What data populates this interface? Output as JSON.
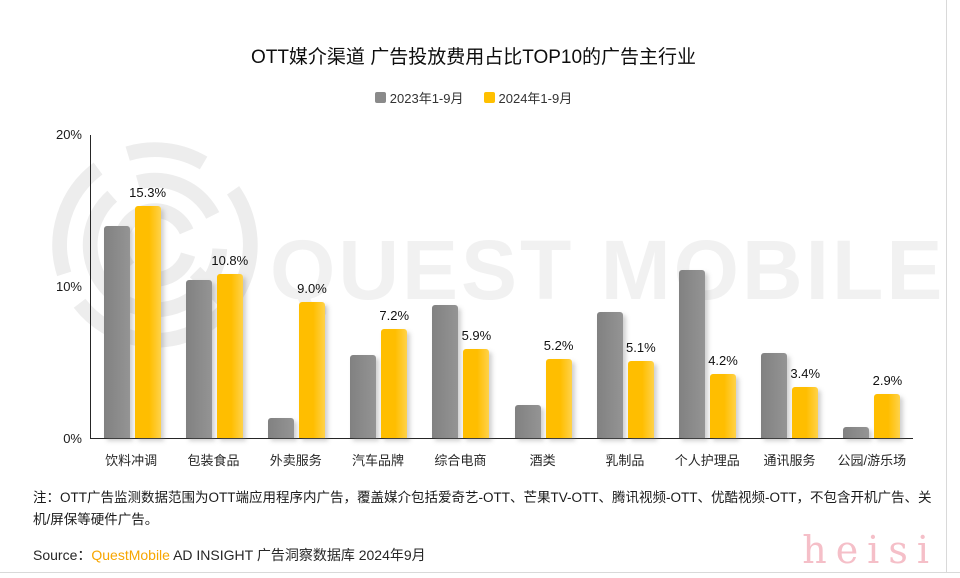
{
  "title": "OTT媒介渠道 广告投放费用占比TOP10的广告主行业",
  "legend": [
    {
      "label": "2023年1-9月",
      "color": "#8a8a8a"
    },
    {
      "label": "2024年1-9月",
      "color": "#ffc000"
    }
  ],
  "chart_data": {
    "type": "bar",
    "title": "OTT媒介渠道 广告投放费用占比TOP10的广告主行业",
    "categories": [
      "饮料冲调",
      "包装食品",
      "外卖服务",
      "汽车品牌",
      "综合电商",
      "酒类",
      "乳制品",
      "个人护理品",
      "通讯服务",
      "公园/游乐场"
    ],
    "series": [
      {
        "name": "2023年1-9月",
        "color": "#8a8a8a",
        "values": [
          14.0,
          10.4,
          1.3,
          5.5,
          8.8,
          2.2,
          8.3,
          11.1,
          5.6,
          0.7
        ],
        "data_labels": []
      },
      {
        "name": "2024年1-9月",
        "color": "#ffc000",
        "values": [
          15.3,
          10.8,
          9.0,
          7.2,
          5.9,
          5.2,
          5.1,
          4.2,
          3.4,
          2.9
        ],
        "data_labels": [
          "15.3%",
          "10.8%",
          "9.0%",
          "7.2%",
          "5.9%",
          "5.2%",
          "5.1%",
          "4.2%",
          "3.4%",
          "2.9%"
        ]
      }
    ],
    "y_axis": {
      "min": 0,
      "max": 20,
      "ticks": [
        "20%",
        "10%",
        "0%"
      ]
    },
    "grid": false,
    "legend_position": "top"
  },
  "note": "注：OTT广告监测数据范围为OTT端应用程序内广告，覆盖媒介包括爱奇艺-OTT、芒果TV-OTT、腾讯视频-OTT、优酷视频-OTT，不包含开机广告、关机/屏保等硬件广告。",
  "source": {
    "prefix": "Source：",
    "brand": "QuestMobile",
    "brand_color": "#f7a600",
    "rest": " AD INSIGHT 广告洞察数据库 2024年9月"
  },
  "watermark": {
    "logo_text": "QUEST MOBILE",
    "corner_text": "heisi"
  }
}
